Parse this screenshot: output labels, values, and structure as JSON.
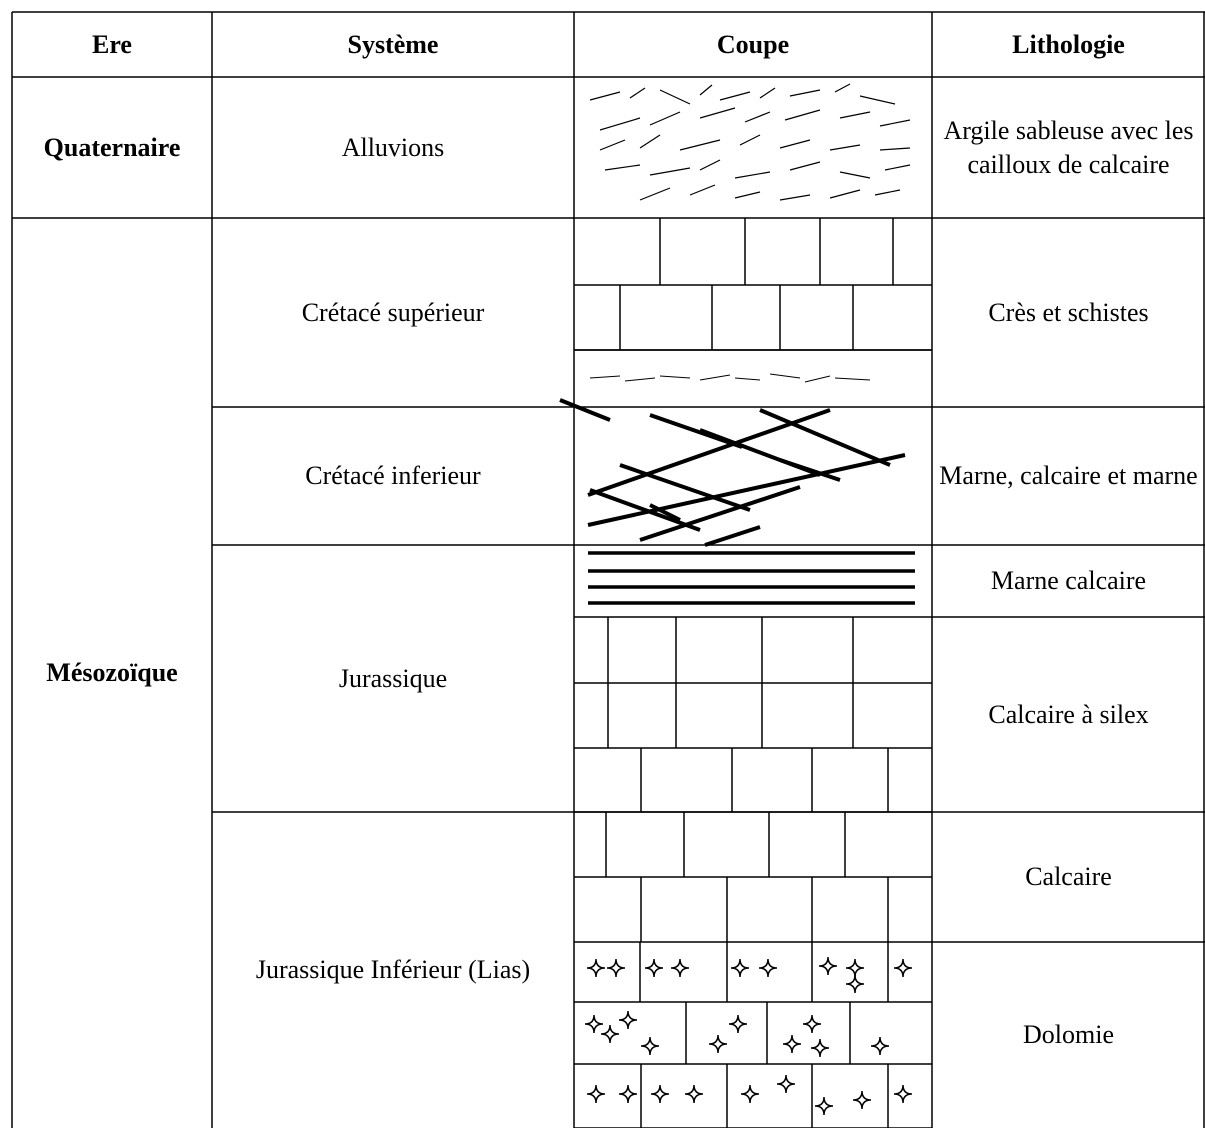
{
  "table": {
    "header": [
      "Ere",
      "Système",
      "Coupe",
      "Lithologie"
    ],
    "eras": [
      {
        "name": "Quaternaire",
        "systems": [
          {
            "name": "Alluvions",
            "lithologies": [
              "Argile sableuse avec les cailloux de calcaire"
            ]
          }
        ]
      },
      {
        "name": "Mésozoïque",
        "systems": [
          {
            "name": "Crétacé supérieur",
            "lithologies": [
              "Crès et schistes"
            ]
          },
          {
            "name": "Crétacé inferieur",
            "lithologies": [
              "Marne, calcaire et marne"
            ]
          },
          {
            "name": "Jurassique",
            "lithologies": [
              "Marne calcaire",
              "Calcaire à silex"
            ]
          },
          {
            "name": "Jurassique Inférieur (Lias)",
            "lithologies": [
              "Calcaire",
              "Dolomie"
            ]
          }
        ]
      }
    ]
  }
}
